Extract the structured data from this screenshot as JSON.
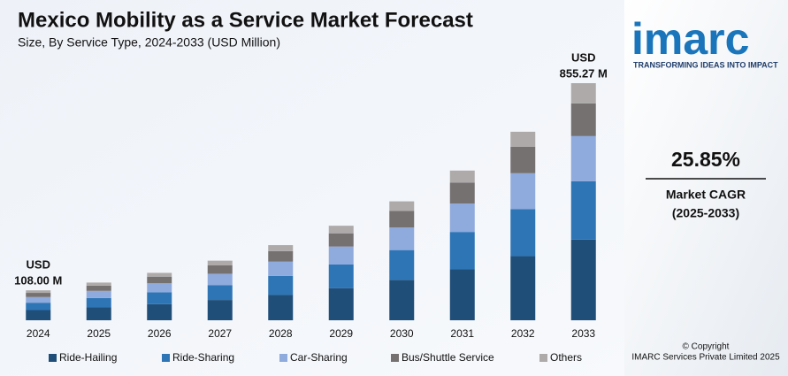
{
  "chart_data": {
    "type": "stacked-bar",
    "title": "Mexico Mobility as a Service Market Forecast",
    "subtitle": "Size, By Service Type, 2024-2033 (USD Million)",
    "categories": [
      "2024",
      "2025",
      "2026",
      "2027",
      "2028",
      "2029",
      "2030",
      "2031",
      "2032",
      "2033"
    ],
    "series": [
      {
        "name": "Ride-Hailing",
        "color": "#1f4e79",
        "values": [
          36.7,
          46.2,
          58.1,
          73.1,
          92.1,
          115.9,
          145.9,
          183.6,
          231.2,
          291.0
        ]
      },
      {
        "name": "Ride-Sharing",
        "color": "#2e75b6",
        "values": [
          26.6,
          34.0,
          42.8,
          53.8,
          67.8,
          85.3,
          107.3,
          135.0,
          170.0,
          210.6
        ]
      },
      {
        "name": "Car-Sharing",
        "color": "#8faadc",
        "values": [
          20.5,
          25.8,
          32.5,
          40.9,
          51.5,
          64.8,
          81.5,
          102.6,
          129.2,
          162.7
        ]
      },
      {
        "name": "Bus/Shuttle Service",
        "color": "#767171",
        "values": [
          15.0,
          19.0,
          23.9,
          30.1,
          37.9,
          47.7,
          60.1,
          75.6,
          95.2,
          118.1
        ]
      },
      {
        "name": "Others",
        "color": "#aeaaaa",
        "values": [
          9.2,
          11.0,
          13.7,
          17.1,
          21.7,
          27.3,
          34.2,
          43.2,
          54.4,
          72.87
        ]
      }
    ],
    "total_labels": [
      [
        "USD",
        "108.00 M"
      ],
      null,
      null,
      null,
      null,
      null,
      null,
      null,
      null,
      [
        "USD",
        "855.27 M"
      ]
    ]
  },
  "sidebar": {
    "logo": "imarc",
    "tagline": "TRANSFORMING IDEAS INTO IMPACT",
    "cagr": "25.85%",
    "cagr_label": "Market CAGR",
    "cagr_period": "(2025-2033)",
    "copyright": "© Copyright",
    "company": "IMARC Services Private Limited 2025"
  }
}
